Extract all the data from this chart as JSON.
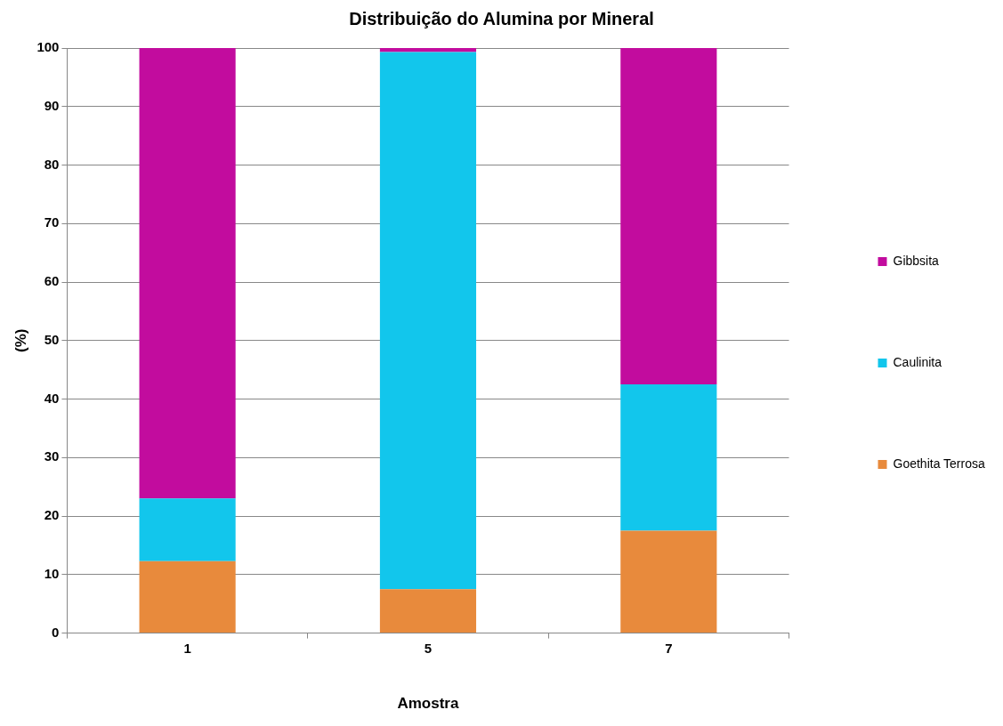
{
  "chart_data": {
    "type": "bar",
    "title": "Distribuição do Alumina por Mineral",
    "xlabel": "Amostra",
    "ylabel": "(%)",
    "categories": [
      "1",
      "5",
      "7"
    ],
    "stacked": true,
    "series": [
      {
        "name": "Goethita Terrosa",
        "color": "#e88a3c",
        "values": [
          12.3,
          7.5,
          17.5
        ]
      },
      {
        "name": "Caulinita",
        "color": "#12c6ec",
        "values": [
          10.7,
          91.8,
          25
        ]
      },
      {
        "name": "Gibbsita",
        "color": "#c20c9e",
        "values": [
          77,
          0.7,
          57.5
        ]
      }
    ],
    "ylim": [
      0,
      100
    ],
    "yticks": [
      0,
      10,
      20,
      30,
      40,
      50,
      60,
      70,
      80,
      90,
      100
    ],
    "grid": "y",
    "legend": "right"
  }
}
